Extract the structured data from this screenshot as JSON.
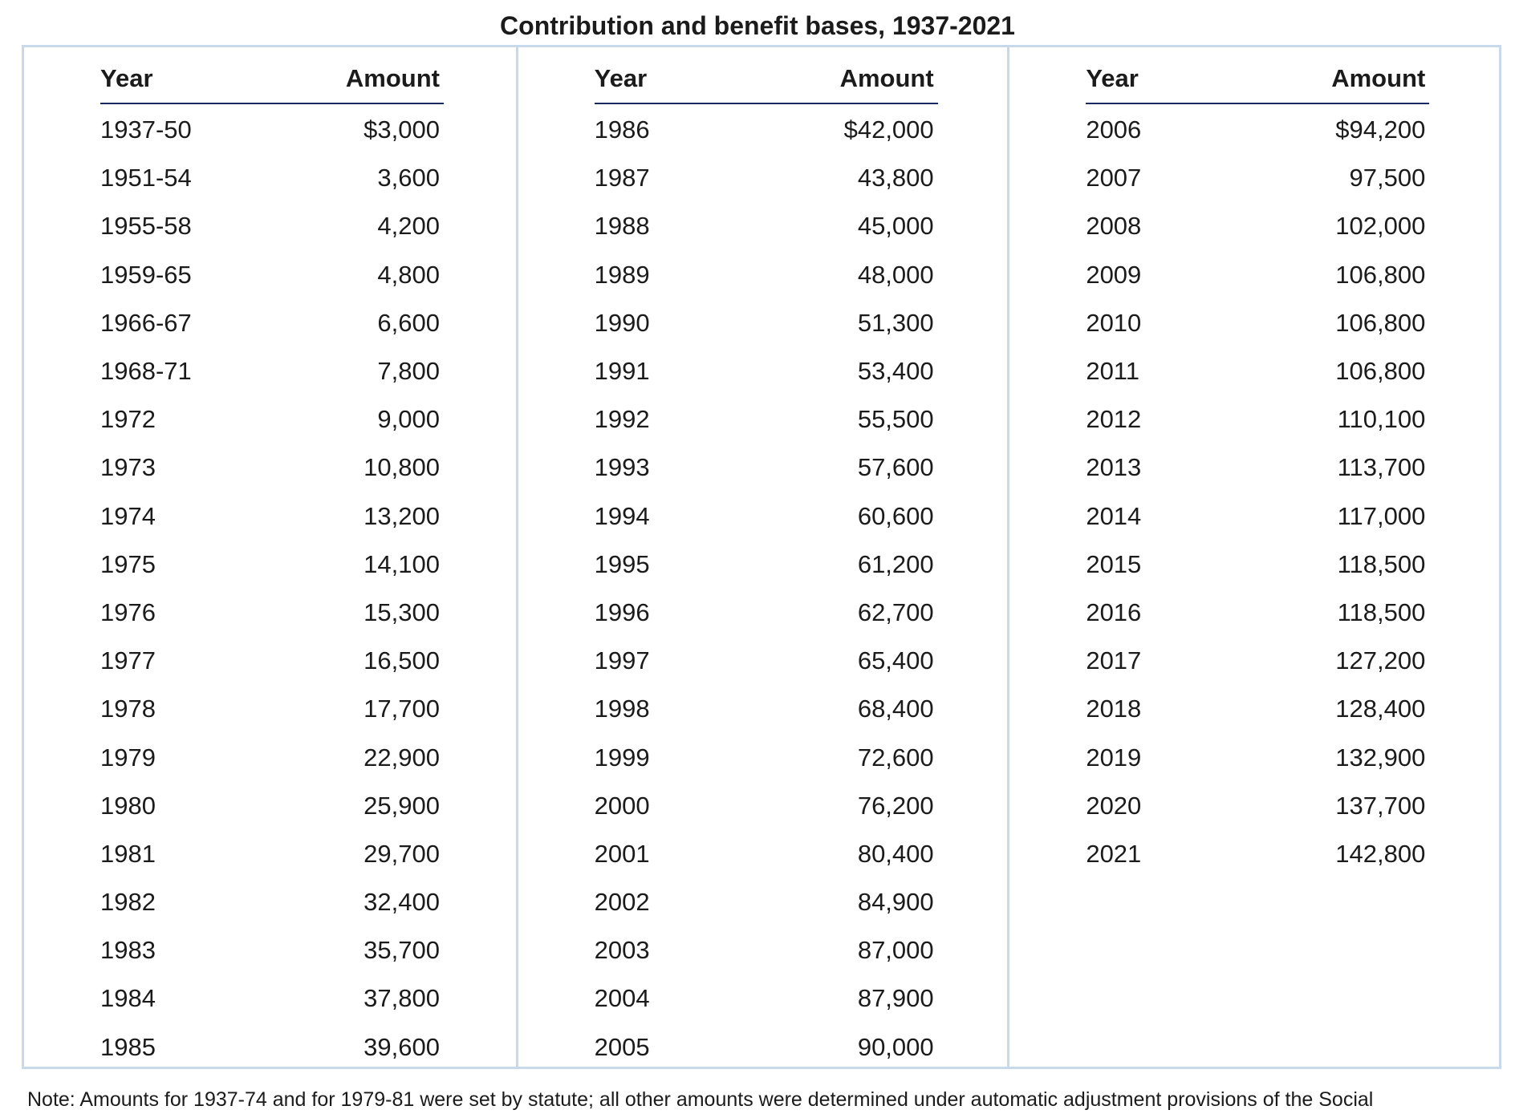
{
  "title": "Contribution and benefit bases, 1937-2021",
  "headers": {
    "year": "Year",
    "amount": "Amount"
  },
  "columns": [
    {
      "rows": [
        {
          "year": "1937-50",
          "amount": "$3,000"
        },
        {
          "year": "1951-54",
          "amount": "3,600"
        },
        {
          "year": "1955-58",
          "amount": "4,200"
        },
        {
          "year": "1959-65",
          "amount": "4,800"
        },
        {
          "year": "1966-67",
          "amount": "6,600"
        },
        {
          "year": "1968-71",
          "amount": "7,800"
        },
        {
          "year": "1972",
          "amount": "9,000"
        },
        {
          "year": "1973",
          "amount": "10,800"
        },
        {
          "year": "1974",
          "amount": "13,200"
        },
        {
          "year": "1975",
          "amount": "14,100"
        },
        {
          "year": "1976",
          "amount": "15,300"
        },
        {
          "year": "1977",
          "amount": "16,500"
        },
        {
          "year": "1978",
          "amount": "17,700"
        },
        {
          "year": "1979",
          "amount": "22,900"
        },
        {
          "year": "1980",
          "amount": "25,900"
        },
        {
          "year": "1981",
          "amount": "29,700"
        },
        {
          "year": "1982",
          "amount": "32,400"
        },
        {
          "year": "1983",
          "amount": "35,700"
        },
        {
          "year": "1984",
          "amount": "37,800"
        },
        {
          "year": "1985",
          "amount": "39,600"
        }
      ]
    },
    {
      "rows": [
        {
          "year": "1986",
          "amount": "$42,000"
        },
        {
          "year": "1987",
          "amount": "43,800"
        },
        {
          "year": "1988",
          "amount": "45,000"
        },
        {
          "year": "1989",
          "amount": "48,000"
        },
        {
          "year": "1990",
          "amount": "51,300"
        },
        {
          "year": "1991",
          "amount": "53,400"
        },
        {
          "year": "1992",
          "amount": "55,500"
        },
        {
          "year": "1993",
          "amount": "57,600"
        },
        {
          "year": "1994",
          "amount": "60,600"
        },
        {
          "year": "1995",
          "amount": "61,200"
        },
        {
          "year": "1996",
          "amount": "62,700"
        },
        {
          "year": "1997",
          "amount": "65,400"
        },
        {
          "year": "1998",
          "amount": "68,400"
        },
        {
          "year": "1999",
          "amount": "72,600"
        },
        {
          "year": "2000",
          "amount": "76,200"
        },
        {
          "year": "2001",
          "amount": "80,400"
        },
        {
          "year": "2002",
          "amount": "84,900"
        },
        {
          "year": "2003",
          "amount": "87,000"
        },
        {
          "year": "2004",
          "amount": "87,900"
        },
        {
          "year": "2005",
          "amount": "90,000"
        }
      ]
    },
    {
      "rows": [
        {
          "year": "2006",
          "amount": "$94,200"
        },
        {
          "year": "2007",
          "amount": "97,500"
        },
        {
          "year": "2008",
          "amount": "102,000"
        },
        {
          "year": "2009",
          "amount": "106,800"
        },
        {
          "year": "2010",
          "amount": "106,800"
        },
        {
          "year": "2011",
          "amount": "106,800"
        },
        {
          "year": "2012",
          "amount": "110,100"
        },
        {
          "year": "2013",
          "amount": "113,700"
        },
        {
          "year": "2014",
          "amount": "117,000"
        },
        {
          "year": "2015",
          "amount": "118,500"
        },
        {
          "year": "2016",
          "amount": "118,500"
        },
        {
          "year": "2017",
          "amount": "127,200"
        },
        {
          "year": "2018",
          "amount": "128,400"
        },
        {
          "year": "2019",
          "amount": "132,900"
        },
        {
          "year": "2020",
          "amount": "137,700"
        },
        {
          "year": "2021",
          "amount": "142,800"
        }
      ]
    }
  ],
  "note": "Note: Amounts for 1937-74 and for 1979-81 were set by statute; all other amounts were determined under automatic adjustment provisions of the Social",
  "colors": {
    "border": "#c9d9ec",
    "header_rule": "#1a2a5e",
    "text": "#1b1b1b"
  }
}
